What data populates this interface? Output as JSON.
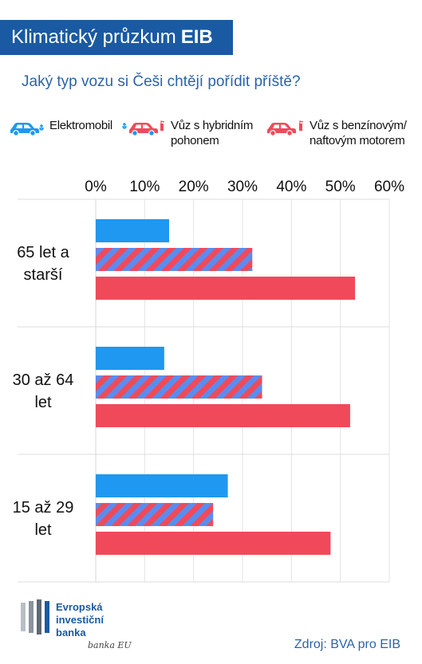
{
  "header": {
    "title_main": "Klimatický průzkum",
    "title_bold": "EIB"
  },
  "question": "Jaký typ vozu si Češi chtějí pořídit příště?",
  "legend": [
    {
      "label": "Elektromobil",
      "color": "#1e98f0",
      "icon": "electric-car-icon"
    },
    {
      "label": "Vůz s hybridním pohonem",
      "color": "#f04a5a",
      "icon": "hybrid-car-icon"
    },
    {
      "label": "Vůz s benzínovým/ naftovým motorem",
      "color": "#f04a5a",
      "icon": "combustion-car-icon"
    }
  ],
  "chart_data": {
    "type": "bar",
    "orientation": "horizontal",
    "categories": [
      "65 let a starší",
      "30 až 64 let",
      "15 až 29 let"
    ],
    "series": [
      {
        "name": "Elektromobil",
        "values": [
          15,
          14,
          27
        ],
        "color": "#1e98f0",
        "pattern": "solid"
      },
      {
        "name": "Vůz s hybridním pohonem",
        "values": [
          32,
          34,
          24
        ],
        "color": "#f04a5a",
        "pattern": "striped"
      },
      {
        "name": "Vůz s benzínovým/ naftovým motorem",
        "values": [
          53,
          52,
          48
        ],
        "color": "#f04a5a",
        "pattern": "solid"
      }
    ],
    "xlim": [
      0,
      60
    ],
    "xticks": [
      "0%",
      "10%",
      "20%",
      "30%",
      "40%",
      "50%",
      "60%"
    ],
    "axis_position": "top",
    "grid": true
  },
  "logo": {
    "line1": "Evropská",
    "line2": "investiční",
    "line3": "banka",
    "signature": "banka EU"
  },
  "source": "Zdroj: BVA pro EIB"
}
